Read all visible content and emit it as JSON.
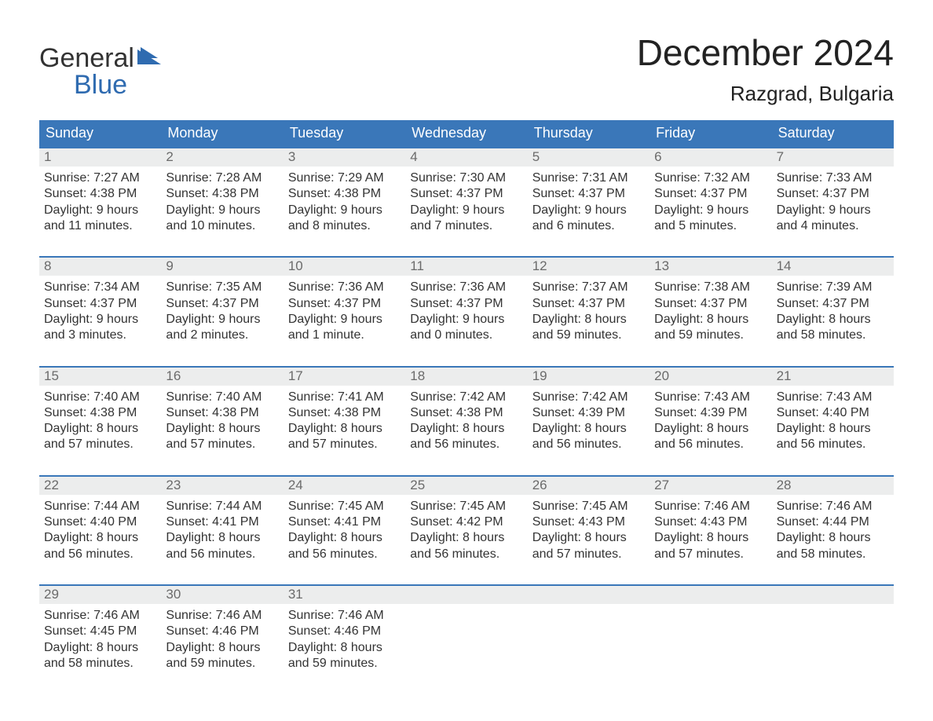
{
  "brand": {
    "word1": "General",
    "word2": "Blue",
    "accent_color": "#2f6bb0"
  },
  "title": "December 2024",
  "location": "Razgrad, Bulgaria",
  "colors": {
    "header_bg": "#3a77b9",
    "header_text": "#ffffff",
    "daynum_bg": "#eceded",
    "daynum_text": "#6b6b6b",
    "body_text": "#333333",
    "week_border": "#3a77b9",
    "page_bg": "#ffffff"
  },
  "typography": {
    "title_fontsize": 46,
    "location_fontsize": 26,
    "dow_fontsize": 18,
    "daynum_fontsize": 17,
    "body_fontsize": 16,
    "logo_fontsize": 34
  },
  "calendar": {
    "type": "table",
    "columns": [
      "Sunday",
      "Monday",
      "Tuesday",
      "Wednesday",
      "Thursday",
      "Friday",
      "Saturday"
    ],
    "weeks": [
      [
        {
          "day": "1",
          "sunrise": "Sunrise: 7:27 AM",
          "sunset": "Sunset: 4:38 PM",
          "dl1": "Daylight: 9 hours",
          "dl2": "and 11 minutes."
        },
        {
          "day": "2",
          "sunrise": "Sunrise: 7:28 AM",
          "sunset": "Sunset: 4:38 PM",
          "dl1": "Daylight: 9 hours",
          "dl2": "and 10 minutes."
        },
        {
          "day": "3",
          "sunrise": "Sunrise: 7:29 AM",
          "sunset": "Sunset: 4:38 PM",
          "dl1": "Daylight: 9 hours",
          "dl2": "and 8 minutes."
        },
        {
          "day": "4",
          "sunrise": "Sunrise: 7:30 AM",
          "sunset": "Sunset: 4:37 PM",
          "dl1": "Daylight: 9 hours",
          "dl2": "and 7 minutes."
        },
        {
          "day": "5",
          "sunrise": "Sunrise: 7:31 AM",
          "sunset": "Sunset: 4:37 PM",
          "dl1": "Daylight: 9 hours",
          "dl2": "and 6 minutes."
        },
        {
          "day": "6",
          "sunrise": "Sunrise: 7:32 AM",
          "sunset": "Sunset: 4:37 PM",
          "dl1": "Daylight: 9 hours",
          "dl2": "and 5 minutes."
        },
        {
          "day": "7",
          "sunrise": "Sunrise: 7:33 AM",
          "sunset": "Sunset: 4:37 PM",
          "dl1": "Daylight: 9 hours",
          "dl2": "and 4 minutes."
        }
      ],
      [
        {
          "day": "8",
          "sunrise": "Sunrise: 7:34 AM",
          "sunset": "Sunset: 4:37 PM",
          "dl1": "Daylight: 9 hours",
          "dl2": "and 3 minutes."
        },
        {
          "day": "9",
          "sunrise": "Sunrise: 7:35 AM",
          "sunset": "Sunset: 4:37 PM",
          "dl1": "Daylight: 9 hours",
          "dl2": "and 2 minutes."
        },
        {
          "day": "10",
          "sunrise": "Sunrise: 7:36 AM",
          "sunset": "Sunset: 4:37 PM",
          "dl1": "Daylight: 9 hours",
          "dl2": "and 1 minute."
        },
        {
          "day": "11",
          "sunrise": "Sunrise: 7:36 AM",
          "sunset": "Sunset: 4:37 PM",
          "dl1": "Daylight: 9 hours",
          "dl2": "and 0 minutes."
        },
        {
          "day": "12",
          "sunrise": "Sunrise: 7:37 AM",
          "sunset": "Sunset: 4:37 PM",
          "dl1": "Daylight: 8 hours",
          "dl2": "and 59 minutes."
        },
        {
          "day": "13",
          "sunrise": "Sunrise: 7:38 AM",
          "sunset": "Sunset: 4:37 PM",
          "dl1": "Daylight: 8 hours",
          "dl2": "and 59 minutes."
        },
        {
          "day": "14",
          "sunrise": "Sunrise: 7:39 AM",
          "sunset": "Sunset: 4:37 PM",
          "dl1": "Daylight: 8 hours",
          "dl2": "and 58 minutes."
        }
      ],
      [
        {
          "day": "15",
          "sunrise": "Sunrise: 7:40 AM",
          "sunset": "Sunset: 4:38 PM",
          "dl1": "Daylight: 8 hours",
          "dl2": "and 57 minutes."
        },
        {
          "day": "16",
          "sunrise": "Sunrise: 7:40 AM",
          "sunset": "Sunset: 4:38 PM",
          "dl1": "Daylight: 8 hours",
          "dl2": "and 57 minutes."
        },
        {
          "day": "17",
          "sunrise": "Sunrise: 7:41 AM",
          "sunset": "Sunset: 4:38 PM",
          "dl1": "Daylight: 8 hours",
          "dl2": "and 57 minutes."
        },
        {
          "day": "18",
          "sunrise": "Sunrise: 7:42 AM",
          "sunset": "Sunset: 4:38 PM",
          "dl1": "Daylight: 8 hours",
          "dl2": "and 56 minutes."
        },
        {
          "day": "19",
          "sunrise": "Sunrise: 7:42 AM",
          "sunset": "Sunset: 4:39 PM",
          "dl1": "Daylight: 8 hours",
          "dl2": "and 56 minutes."
        },
        {
          "day": "20",
          "sunrise": "Sunrise: 7:43 AM",
          "sunset": "Sunset: 4:39 PM",
          "dl1": "Daylight: 8 hours",
          "dl2": "and 56 minutes."
        },
        {
          "day": "21",
          "sunrise": "Sunrise: 7:43 AM",
          "sunset": "Sunset: 4:40 PM",
          "dl1": "Daylight: 8 hours",
          "dl2": "and 56 minutes."
        }
      ],
      [
        {
          "day": "22",
          "sunrise": "Sunrise: 7:44 AM",
          "sunset": "Sunset: 4:40 PM",
          "dl1": "Daylight: 8 hours",
          "dl2": "and 56 minutes."
        },
        {
          "day": "23",
          "sunrise": "Sunrise: 7:44 AM",
          "sunset": "Sunset: 4:41 PM",
          "dl1": "Daylight: 8 hours",
          "dl2": "and 56 minutes."
        },
        {
          "day": "24",
          "sunrise": "Sunrise: 7:45 AM",
          "sunset": "Sunset: 4:41 PM",
          "dl1": "Daylight: 8 hours",
          "dl2": "and 56 minutes."
        },
        {
          "day": "25",
          "sunrise": "Sunrise: 7:45 AM",
          "sunset": "Sunset: 4:42 PM",
          "dl1": "Daylight: 8 hours",
          "dl2": "and 56 minutes."
        },
        {
          "day": "26",
          "sunrise": "Sunrise: 7:45 AM",
          "sunset": "Sunset: 4:43 PM",
          "dl1": "Daylight: 8 hours",
          "dl2": "and 57 minutes."
        },
        {
          "day": "27",
          "sunrise": "Sunrise: 7:46 AM",
          "sunset": "Sunset: 4:43 PM",
          "dl1": "Daylight: 8 hours",
          "dl2": "and 57 minutes."
        },
        {
          "day": "28",
          "sunrise": "Sunrise: 7:46 AM",
          "sunset": "Sunset: 4:44 PM",
          "dl1": "Daylight: 8 hours",
          "dl2": "and 58 minutes."
        }
      ],
      [
        {
          "day": "29",
          "sunrise": "Sunrise: 7:46 AM",
          "sunset": "Sunset: 4:45 PM",
          "dl1": "Daylight: 8 hours",
          "dl2": "and 58 minutes."
        },
        {
          "day": "30",
          "sunrise": "Sunrise: 7:46 AM",
          "sunset": "Sunset: 4:46 PM",
          "dl1": "Daylight: 8 hours",
          "dl2": "and 59 minutes."
        },
        {
          "day": "31",
          "sunrise": "Sunrise: 7:46 AM",
          "sunset": "Sunset: 4:46 PM",
          "dl1": "Daylight: 8 hours",
          "dl2": "and 59 minutes."
        },
        null,
        null,
        null,
        null
      ]
    ]
  }
}
